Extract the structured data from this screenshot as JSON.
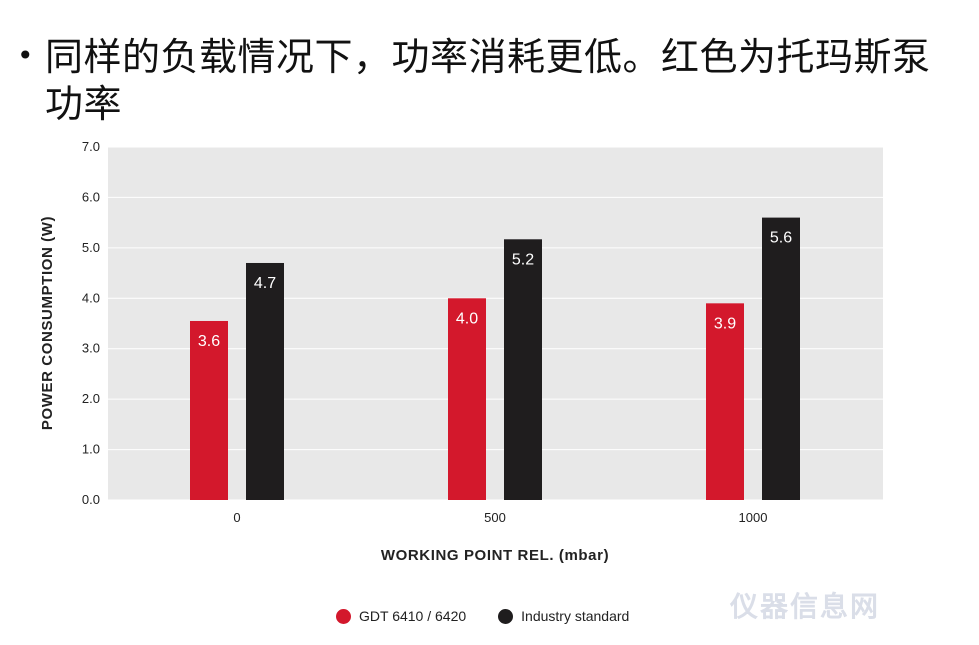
{
  "slide": {
    "bullet": "•",
    "title": "同样的负载情况下，功率消耗更低。红色为托玛斯泵功率"
  },
  "colors": {
    "background": "#ffffff",
    "plot_background": "#e8e8e8",
    "grid": "#ffffff",
    "series_red": "#d3182c",
    "series_black": "#1f1d1e",
    "label_text": "#ffffff"
  },
  "chart_data": {
    "type": "bar",
    "title": "",
    "xlabel": "WORKING POINT REL. (mbar)",
    "ylabel": "POWER CONSUMPTION (W)",
    "categories": [
      "0",
      "500",
      "1000"
    ],
    "y_ticks": [
      "0.0",
      "1.0",
      "2.0",
      "3.0",
      "4.0",
      "5.0",
      "6.0",
      "7.0"
    ],
    "ylim": [
      0,
      7
    ],
    "grid": true,
    "legend_position": "bottom-center",
    "series": [
      {
        "name": "GDT 6410 / 6420",
        "color": "#d3182c",
        "values": [
          3.55,
          4.0,
          3.9
        ],
        "labels": [
          "3.6",
          "4.0",
          "3.9"
        ]
      },
      {
        "name": "Industry standard",
        "color": "#1f1d1e",
        "values": [
          4.7,
          5.17,
          5.6
        ],
        "labels": [
          "4.7",
          "5.2",
          "5.6"
        ]
      }
    ]
  },
  "watermark": {
    "text": "仪器信息网"
  }
}
